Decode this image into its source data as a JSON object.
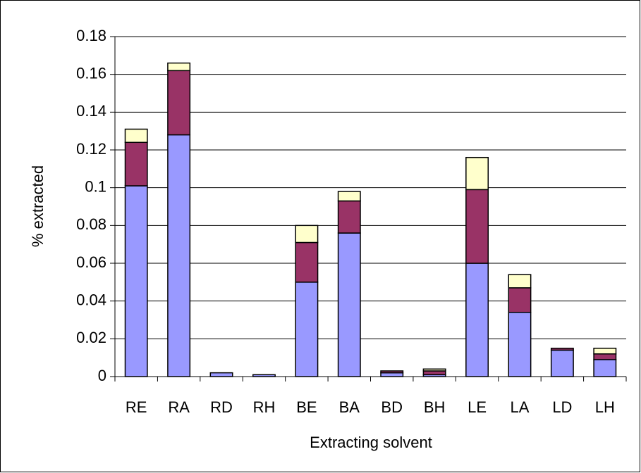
{
  "chart_data": {
    "type": "stacked_bar",
    "y_label": "% extracted",
    "x_label": "Extracting solvent",
    "categories": [
      "RE",
      "RA",
      "RD",
      "RH",
      "BE",
      "BA",
      "BD",
      "BH",
      "LE",
      "LA",
      "LD",
      "LH"
    ],
    "series": [
      {
        "color": "#9999ff",
        "values": [
          0.101,
          0.128,
          0.002,
          0.001,
          0.05,
          0.076,
          0.002,
          0.001,
          0.06,
          0.034,
          0.014,
          0.009
        ]
      },
      {
        "color": "#993366",
        "values": [
          0.023,
          0.034,
          0,
          0,
          0.021,
          0.017,
          0.001,
          0.002,
          0.039,
          0.013,
          0.001,
          0.003
        ]
      },
      {
        "color": "#ffffcc",
        "values": [
          0.007,
          0.004,
          0,
          0,
          0.009,
          0.005,
          0,
          0.001,
          0.017,
          0.007,
          0,
          0.003
        ]
      }
    ],
    "ylim": [
      0,
      0.18
    ],
    "yticks": [
      0,
      0.02,
      0.04,
      0.06,
      0.08,
      0.1,
      0.12,
      0.14,
      0.16,
      0.18
    ],
    "grid": true
  }
}
